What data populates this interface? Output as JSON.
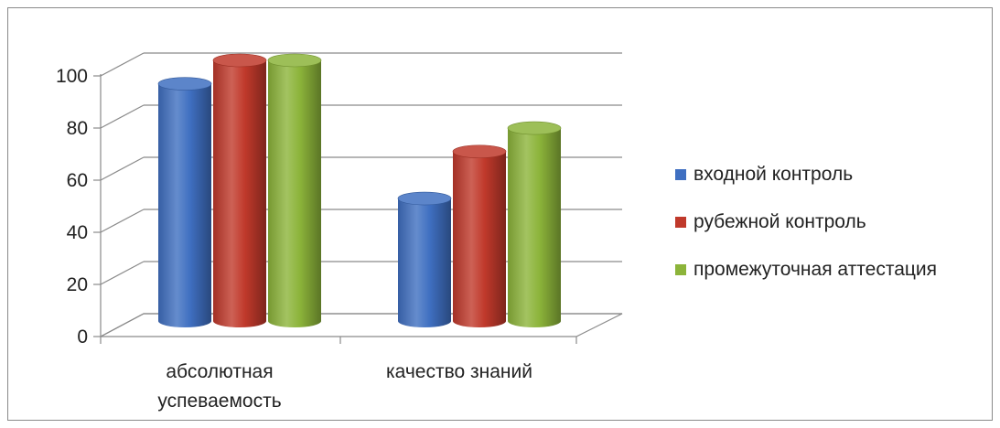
{
  "chart_data": {
    "type": "bar",
    "categories": [
      [
        "абсолютная",
        "успеваемость"
      ],
      [
        "качество знаний"
      ]
    ],
    "series": [
      {
        "name": "входной контроль",
        "color": "#3f6fc1",
        "values": [
          91,
          47
        ]
      },
      {
        "name": "рубежной контроль",
        "color": "#c0392b",
        "values": [
          100,
          65
        ]
      },
      {
        "name": "промежуточная аттестация",
        "color": "#8cb43a",
        "values": [
          100,
          74
        ]
      }
    ],
    "yticks": [
      "0",
      "20",
      "40",
      "60",
      "80",
      "100"
    ],
    "ylim": [
      0,
      100
    ],
    "grid": true,
    "legend_position": "right",
    "style": "3d-cylinder"
  }
}
